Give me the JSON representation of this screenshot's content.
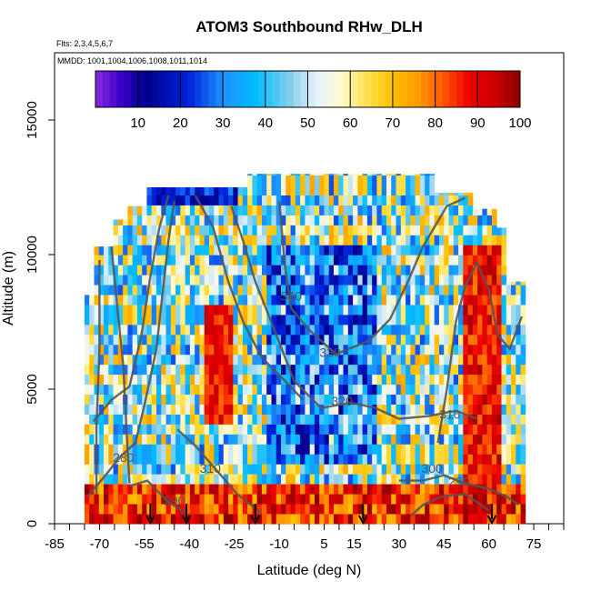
{
  "chart_data": {
    "type": "heatmap",
    "title": "ATOM3 Southbound RHw_DLH",
    "annotations": {
      "flights": "Flts: 2,3,4,5,6,7",
      "dates": "MMDD: 1001,1004,1006,1008,1011,1014"
    },
    "xlabel": "Latitude (deg N)",
    "ylabel": "Altitude (m)",
    "xlim": [
      -85,
      85
    ],
    "ylim": [
      0,
      17500
    ],
    "xticks": [
      -85,
      -70,
      -55,
      -40,
      -25,
      -10,
      5,
      15,
      30,
      45,
      60,
      75
    ],
    "yticks": [
      0,
      5000,
      10000,
      15000
    ],
    "colorbar": {
      "ticks": [
        10,
        20,
        30,
        40,
        50,
        60,
        70,
        80,
        90,
        100
      ],
      "range": [
        0,
        100
      ],
      "placement": "top"
    },
    "data_extent": {
      "lat": [
        -75,
        72
      ],
      "alt": [
        0,
        13000
      ]
    },
    "arrow_latitudes": [
      -53,
      -41,
      -18,
      18,
      61
    ],
    "contours": [
      {
        "label": "280",
        "lat": -62,
        "alt": 2300
      },
      {
        "label": "290",
        "lat": -45,
        "alt": 700
      },
      {
        "label": "310",
        "lat": -33,
        "alt": 1900
      },
      {
        "label": "320",
        "lat": 11,
        "alt": 4400
      },
      {
        "label": "330",
        "lat": 7,
        "alt": 6200
      },
      {
        "label": "340",
        "lat": -6,
        "alt": 8300
      },
      {
        "label": "310",
        "lat": 47,
        "alt": 3900
      },
      {
        "label": "300",
        "lat": 41,
        "alt": 1900
      },
      {
        "label": "290",
        "lat": 50,
        "alt": 1400
      }
    ]
  }
}
